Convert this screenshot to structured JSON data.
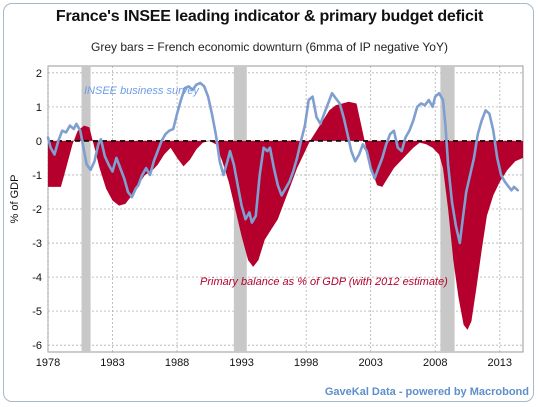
{
  "title": "France's  INSEE leading indicator & primary budget deficit",
  "subtitle": "Grey bars = French economic downturn (6mma of IP negative YoY)",
  "source": "GaveKal Data - powered by Macrobond",
  "colors": {
    "deficit_fill": "#b5002d",
    "insee_line": "#7f9fd0",
    "recession_bar": "#c8c8c8",
    "zero_line": "#000000",
    "grid": "#b0b0b0"
  },
  "chart_data": {
    "type": "area",
    "xlim": [
      1978,
      2014.8
    ],
    "ylim": [
      -6.2,
      2.2
    ],
    "ylabel": "% of GDP",
    "x_ticks": [
      {
        "value": 1978,
        "label": "1978"
      },
      {
        "value": 1983,
        "label": "1983"
      },
      {
        "value": 1988,
        "label": "1988"
      },
      {
        "value": 1993,
        "label": "1993"
      },
      {
        "value": 1998,
        "label": "1998"
      },
      {
        "value": 2003,
        "label": "2003"
      },
      {
        "value": 2008,
        "label": "2008"
      },
      {
        "value": 2013,
        "label": "2013"
      }
    ],
    "y_ticks": [
      {
        "value": 2,
        "label": "2"
      },
      {
        "value": 1,
        "label": "1"
      },
      {
        "value": 0,
        "label": "0"
      },
      {
        "value": -1,
        "label": "-1"
      },
      {
        "value": -2,
        "label": "-2"
      },
      {
        "value": -3,
        "label": "-3"
      },
      {
        "value": -4,
        "label": "-4"
      },
      {
        "value": -5,
        "label": "-5"
      },
      {
        "value": -6,
        "label": "-6"
      }
    ],
    "grid": true,
    "recession_periods": [
      [
        1980.6,
        1981.3
      ],
      [
        1992.4,
        1993.4
      ],
      [
        2008.4,
        2009.5
      ]
    ],
    "annotations": {
      "insee": "INSEE business survey",
      "primary": "Primary balance as % of GDP (with 2012 estimate)"
    },
    "series": [
      {
        "name": "Primary balance as % of GDP (with 2012 estimate)",
        "style": "area",
        "points": [
          [
            1978.0,
            -1.35
          ],
          [
            1979.0,
            -1.35
          ],
          [
            1979.4,
            -0.8
          ],
          [
            1979.9,
            -0.1
          ],
          [
            1980.3,
            0.3
          ],
          [
            1980.8,
            0.45
          ],
          [
            1981.2,
            0.4
          ],
          [
            1981.6,
            -0.2
          ],
          [
            1982.0,
            -0.8
          ],
          [
            1982.5,
            -1.4
          ],
          [
            1983.0,
            -1.75
          ],
          [
            1983.5,
            -1.9
          ],
          [
            1984.0,
            -1.85
          ],
          [
            1984.5,
            -1.6
          ],
          [
            1985.0,
            -1.3
          ],
          [
            1985.5,
            -1.0
          ],
          [
            1986.0,
            -0.9
          ],
          [
            1986.5,
            -0.7
          ],
          [
            1987.0,
            -0.4
          ],
          [
            1987.5,
            -0.2
          ],
          [
            1988.0,
            -0.5
          ],
          [
            1988.5,
            -0.75
          ],
          [
            1989.0,
            -0.55
          ],
          [
            1989.5,
            -0.25
          ],
          [
            1990.0,
            -0.05
          ],
          [
            1990.5,
            0.0
          ],
          [
            1991.0,
            -0.1
          ],
          [
            1991.5,
            -0.6
          ],
          [
            1992.0,
            -1.2
          ],
          [
            1992.5,
            -2.0
          ],
          [
            1993.0,
            -2.8
          ],
          [
            1993.5,
            -3.5
          ],
          [
            1993.9,
            -3.7
          ],
          [
            1994.3,
            -3.5
          ],
          [
            1994.8,
            -2.9
          ],
          [
            1995.3,
            -2.6
          ],
          [
            1995.8,
            -2.3
          ],
          [
            1996.3,
            -1.8
          ],
          [
            1996.8,
            -1.3
          ],
          [
            1997.3,
            -0.8
          ],
          [
            1997.8,
            -0.4
          ],
          [
            1998.3,
            0.0
          ],
          [
            1998.8,
            0.3
          ],
          [
            1999.3,
            0.6
          ],
          [
            1999.8,
            0.9
          ],
          [
            2000.3,
            1.05
          ],
          [
            2000.8,
            1.1
          ],
          [
            2001.3,
            1.15
          ],
          [
            2001.9,
            1.1
          ],
          [
            2002.3,
            0.4
          ],
          [
            2002.7,
            -0.3
          ],
          [
            2003.1,
            -0.9
          ],
          [
            2003.5,
            -1.3
          ],
          [
            2003.9,
            -1.35
          ],
          [
            2004.3,
            -1.1
          ],
          [
            2004.8,
            -0.8
          ],
          [
            2005.3,
            -0.6
          ],
          [
            2005.8,
            -0.4
          ],
          [
            2006.3,
            -0.2
          ],
          [
            2006.8,
            -0.05
          ],
          [
            2007.3,
            -0.1
          ],
          [
            2007.8,
            -0.2
          ],
          [
            2008.3,
            -0.4
          ],
          [
            2008.6,
            -0.8
          ],
          [
            2009.0,
            -2.0
          ],
          [
            2009.4,
            -3.5
          ],
          [
            2009.8,
            -4.6
          ],
          [
            2010.2,
            -5.4
          ],
          [
            2010.5,
            -5.55
          ],
          [
            2010.8,
            -5.3
          ],
          [
            2011.2,
            -4.3
          ],
          [
            2011.6,
            -3.2
          ],
          [
            2012.0,
            -2.2
          ],
          [
            2012.5,
            -1.6
          ],
          [
            2013.0,
            -1.2
          ],
          [
            2013.6,
            -0.85
          ],
          [
            2014.2,
            -0.6
          ],
          [
            2014.8,
            -0.5
          ]
        ]
      },
      {
        "name": "INSEE business survey",
        "style": "line",
        "points": [
          [
            1978.0,
            0.1
          ],
          [
            1978.2,
            -0.2
          ],
          [
            1978.5,
            -0.4
          ],
          [
            1978.8,
            0.0
          ],
          [
            1979.1,
            0.3
          ],
          [
            1979.4,
            0.25
          ],
          [
            1979.7,
            0.45
          ],
          [
            1980.0,
            0.35
          ],
          [
            1980.2,
            0.5
          ],
          [
            1980.5,
            0.3
          ],
          [
            1980.8,
            -0.3
          ],
          [
            1981.0,
            -0.7
          ],
          [
            1981.3,
            -0.85
          ],
          [
            1981.6,
            -0.6
          ],
          [
            1981.9,
            -0.1
          ],
          [
            1982.1,
            0.05
          ],
          [
            1982.4,
            -0.45
          ],
          [
            1982.7,
            -0.7
          ],
          [
            1983.0,
            -0.9
          ],
          [
            1983.3,
            -0.5
          ],
          [
            1983.6,
            -0.8
          ],
          [
            1983.9,
            -1.1
          ],
          [
            1984.2,
            -1.5
          ],
          [
            1984.5,
            -1.65
          ],
          [
            1984.8,
            -1.4
          ],
          [
            1985.0,
            -1.3
          ],
          [
            1985.3,
            -1.0
          ],
          [
            1985.6,
            -0.8
          ],
          [
            1985.9,
            -1.0
          ],
          [
            1986.2,
            -0.6
          ],
          [
            1986.5,
            -0.3
          ],
          [
            1986.8,
            0.0
          ],
          [
            1987.1,
            0.2
          ],
          [
            1987.4,
            0.3
          ],
          [
            1987.7,
            0.35
          ],
          [
            1988.0,
            0.8
          ],
          [
            1988.3,
            1.2
          ],
          [
            1988.6,
            1.55
          ],
          [
            1988.9,
            1.6
          ],
          [
            1989.2,
            1.5
          ],
          [
            1989.5,
            1.65
          ],
          [
            1989.8,
            1.7
          ],
          [
            1990.1,
            1.6
          ],
          [
            1990.4,
            1.3
          ],
          [
            1990.7,
            0.8
          ],
          [
            1991.0,
            0.2
          ],
          [
            1991.3,
            -0.6
          ],
          [
            1991.6,
            -1.0
          ],
          [
            1991.9,
            -0.6
          ],
          [
            1992.1,
            -0.3
          ],
          [
            1992.4,
            -0.7
          ],
          [
            1992.7,
            -1.3
          ],
          [
            1993.0,
            -1.9
          ],
          [
            1993.3,
            -2.3
          ],
          [
            1993.6,
            -2.1
          ],
          [
            1993.8,
            -2.4
          ],
          [
            1994.1,
            -2.2
          ],
          [
            1994.4,
            -1.0
          ],
          [
            1994.7,
            -0.2
          ],
          [
            1995.0,
            -0.3
          ],
          [
            1995.2,
            -0.2
          ],
          [
            1995.5,
            -0.8
          ],
          [
            1995.8,
            -1.3
          ],
          [
            1996.1,
            -1.6
          ],
          [
            1996.4,
            -1.4
          ],
          [
            1996.7,
            -1.2
          ],
          [
            1997.0,
            -0.9
          ],
          [
            1997.3,
            -0.5
          ],
          [
            1997.6,
            0.0
          ],
          [
            1997.9,
            0.45
          ],
          [
            1998.2,
            1.2
          ],
          [
            1998.5,
            1.3
          ],
          [
            1998.8,
            0.7
          ],
          [
            1999.1,
            0.5
          ],
          [
            1999.4,
            0.8
          ],
          [
            1999.7,
            1.1
          ],
          [
            2000.0,
            1.4
          ],
          [
            2000.3,
            1.25
          ],
          [
            2000.6,
            1.1
          ],
          [
            2000.9,
            0.7
          ],
          [
            2001.2,
            0.2
          ],
          [
            2001.5,
            -0.3
          ],
          [
            2001.8,
            -0.6
          ],
          [
            2002.1,
            -0.4
          ],
          [
            2002.4,
            -0.1
          ],
          [
            2002.7,
            -0.3
          ],
          [
            2003.0,
            -0.8
          ],
          [
            2003.3,
            -1.1
          ],
          [
            2003.6,
            -0.8
          ],
          [
            2003.9,
            -0.5
          ],
          [
            2004.2,
            -0.1
          ],
          [
            2004.5,
            0.2
          ],
          [
            2004.8,
            0.3
          ],
          [
            2005.1,
            -0.2
          ],
          [
            2005.4,
            -0.3
          ],
          [
            2005.7,
            0.1
          ],
          [
            2006.0,
            0.3
          ],
          [
            2006.3,
            0.6
          ],
          [
            2006.6,
            1.0
          ],
          [
            2006.9,
            1.1
          ],
          [
            2007.2,
            1.05
          ],
          [
            2007.5,
            1.2
          ],
          [
            2007.8,
            1.0
          ],
          [
            2008.0,
            1.3
          ],
          [
            2008.3,
            1.4
          ],
          [
            2008.6,
            1.2
          ],
          [
            2008.8,
            0.4
          ],
          [
            2009.0,
            -0.7
          ],
          [
            2009.3,
            -1.8
          ],
          [
            2009.6,
            -2.5
          ],
          [
            2009.9,
            -3.0
          ],
          [
            2010.1,
            -2.4
          ],
          [
            2010.4,
            -1.5
          ],
          [
            2010.7,
            -1.0
          ],
          [
            2011.0,
            -0.5
          ],
          [
            2011.3,
            0.2
          ],
          [
            2011.6,
            0.6
          ],
          [
            2011.9,
            0.9
          ],
          [
            2012.2,
            0.8
          ],
          [
            2012.5,
            0.3
          ],
          [
            2012.8,
            -0.5
          ],
          [
            2013.1,
            -1.0
          ],
          [
            2013.4,
            -1.2
          ],
          [
            2013.7,
            -1.35
          ],
          [
            2013.9,
            -1.45
          ],
          [
            2014.1,
            -1.35
          ],
          [
            2014.4,
            -1.45
          ]
        ]
      }
    ]
  }
}
